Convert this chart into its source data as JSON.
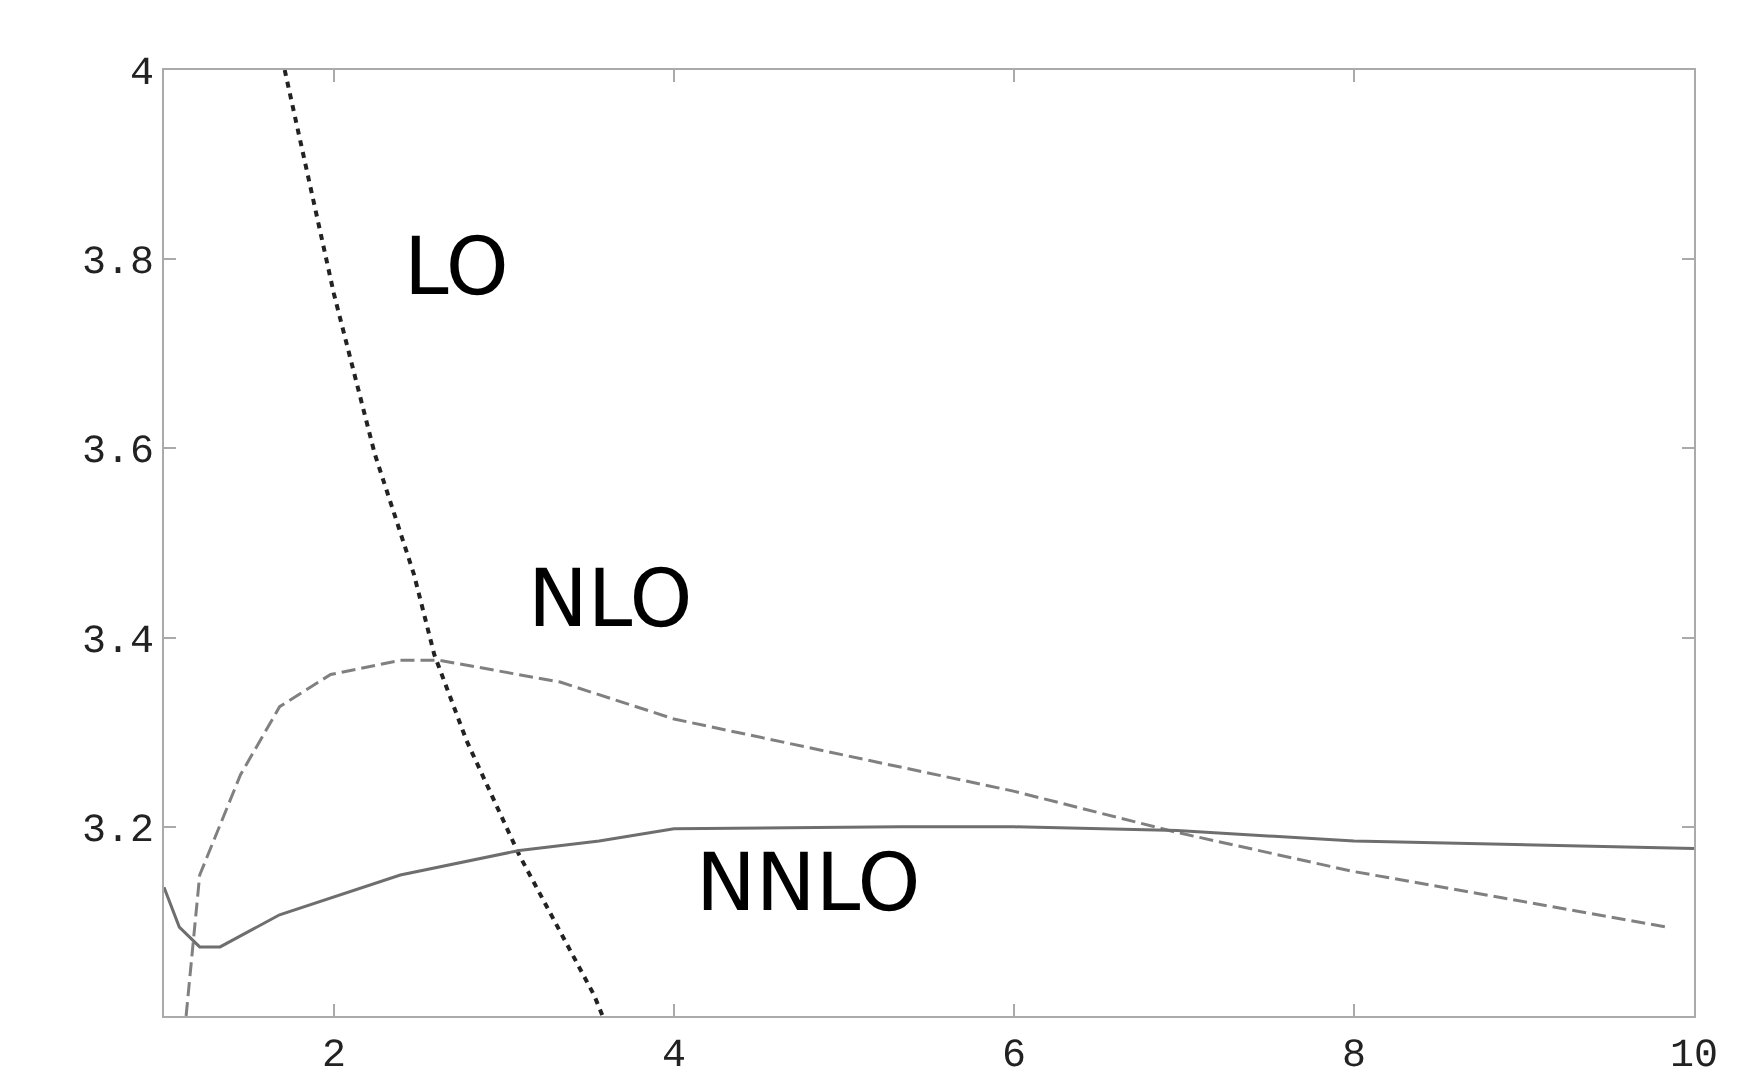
{
  "chart_data": {
    "type": "line",
    "xlim": [
      1,
      10
    ],
    "ylim": [
      3,
      4
    ],
    "xticks": [
      2,
      4,
      6,
      8,
      10
    ],
    "yticks": [
      3.2,
      3.4,
      3.6,
      3.8,
      4
    ],
    "grid": false,
    "legend": false,
    "series": [
      {
        "name": "LO",
        "color": "#222222",
        "line_style": "dotted",
        "x": [
          1.71,
          2.0,
          2.24,
          2.47,
          2.59,
          2.78,
          3.09,
          3.53,
          3.58
        ],
        "values": [
          4.0,
          3.763,
          3.594,
          3.467,
          3.382,
          3.291,
          3.17,
          3.022,
          3.0
        ]
      },
      {
        "name": "NLO",
        "color": "#808080",
        "line_style": "dashed",
        "x": [
          1.13,
          1.21,
          1.45,
          1.68,
          1.98,
          2.39,
          2.62,
          3.33,
          4.0,
          5.99,
          6.96,
          7.99,
          9.84
        ],
        "values": [
          3.0,
          3.149,
          3.255,
          3.327,
          3.361,
          3.376,
          3.376,
          3.353,
          3.314,
          3.238,
          3.194,
          3.153,
          3.094
        ]
      },
      {
        "name": "NNLO",
        "color": "#6e6e6e",
        "line_style": "solid",
        "x": [
          1.0,
          1.09,
          1.21,
          1.33,
          1.68,
          2.39,
          3.09,
          3.56,
          4.0,
          5.33,
          6.0,
          6.96,
          8.0,
          10.0
        ],
        "values": [
          3.136,
          3.094,
          3.073,
          3.073,
          3.107,
          3.149,
          3.175,
          3.185,
          3.198,
          3.2,
          3.2,
          3.196,
          3.185,
          3.177
        ]
      }
    ]
  }
}
